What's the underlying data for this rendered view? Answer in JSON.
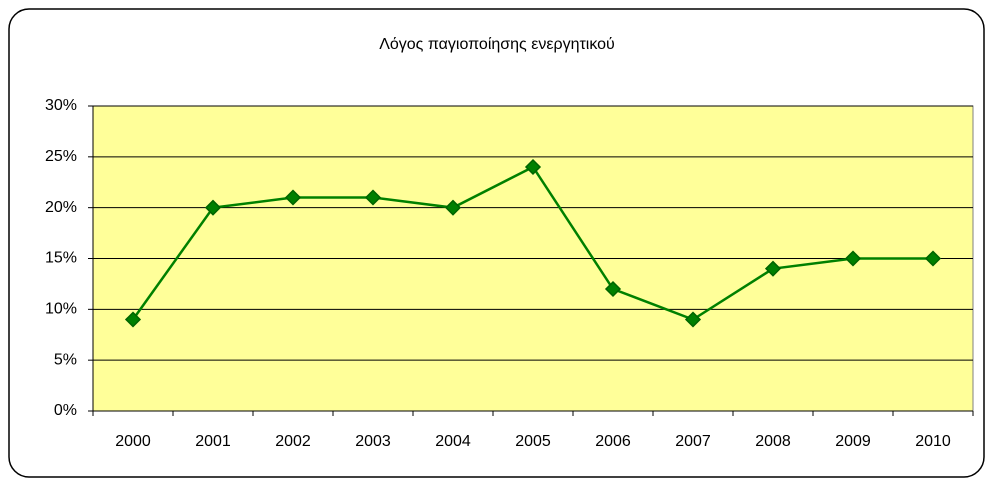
{
  "chart_data": {
    "type": "line",
    "title": "Λόγος παγιοποίησης ενεργητικού",
    "categories": [
      "2000",
      "2001",
      "2002",
      "2003",
      "2004",
      "2005",
      "2006",
      "2007",
      "2008",
      "2009",
      "2010"
    ],
    "values": [
      9,
      20,
      21,
      21,
      20,
      24,
      12,
      9,
      14,
      15,
      15
    ],
    "color": "#008000",
    "marker_color": "#006400",
    "ylim": [
      0,
      30
    ],
    "yticks": [
      {
        "value": 0,
        "label": "0%"
      },
      {
        "value": 5,
        "label": "5%"
      },
      {
        "value": 10,
        "label": "10%"
      },
      {
        "value": 15,
        "label": "15%"
      },
      {
        "value": 20,
        "label": "20%"
      },
      {
        "value": 25,
        "label": "25%"
      },
      {
        "value": 30,
        "label": "30%"
      }
    ],
    "grid": true
  }
}
